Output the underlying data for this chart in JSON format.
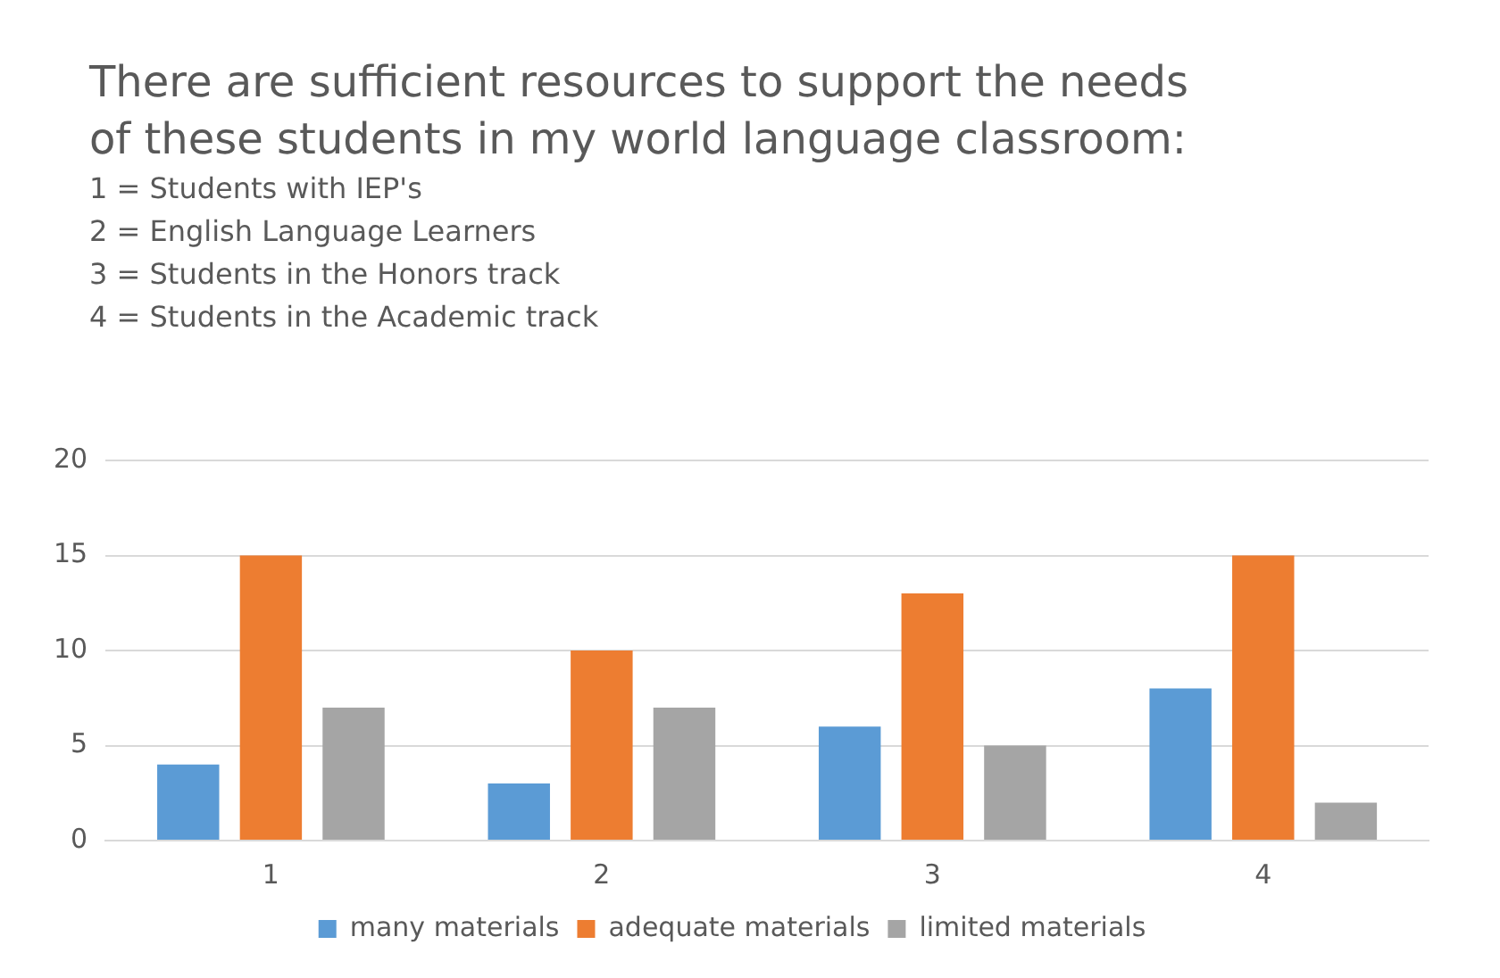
{
  "chart_data": {
    "type": "bar",
    "title": "There are sufficient resources to support the needs of these students in my world language classroom:",
    "annotations": [
      "1 = Students with IEP's",
      "2 = English Language Learners",
      "3 = Students in the Honors track",
      "4 = Students in the Academic track"
    ],
    "categories": [
      "1",
      "2",
      "3",
      "4"
    ],
    "series": [
      {
        "name": "many materials",
        "color": "#5b9bd5",
        "values": [
          4,
          3,
          6,
          8
        ]
      },
      {
        "name": "adequate materials",
        "color": "#ed7d31",
        "values": [
          15,
          10,
          13,
          15
        ]
      },
      {
        "name": "limited materials",
        "color": "#a5a5a5",
        "values": [
          7,
          7,
          5,
          2
        ]
      }
    ],
    "ylim": [
      0,
      20
    ],
    "yticks": [
      0,
      5,
      10,
      15,
      20
    ],
    "grid": "y",
    "legend": "bottom"
  }
}
